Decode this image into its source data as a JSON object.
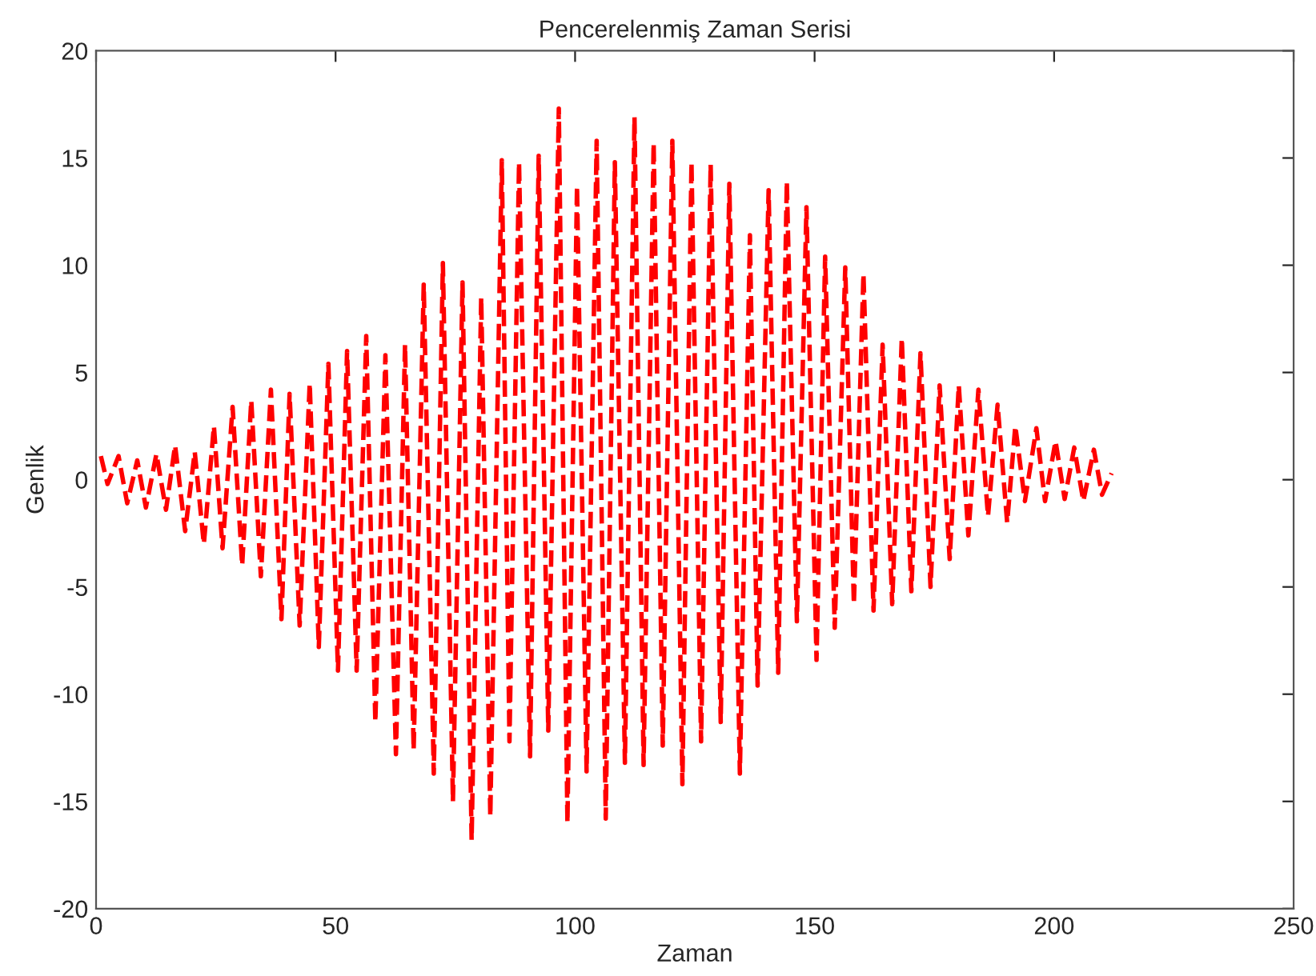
{
  "chart_data": {
    "type": "line",
    "title": "Pencerelenmiş Zaman Serisi",
    "xlabel": "Zaman",
    "ylabel": "Genlik",
    "xlim": [
      0,
      250
    ],
    "xticks": [
      0,
      50,
      100,
      150,
      200,
      250
    ],
    "ylim": [
      -20,
      20
    ],
    "yticks": [
      -20,
      -15,
      -10,
      -5,
      0,
      5,
      10,
      15,
      20
    ],
    "grid": false,
    "marker": "none",
    "line_style": "dashed",
    "series": [
      {
        "color": "#ff0000",
        "x": [
          1,
          2.4,
          4.7,
          6.5,
          8.6,
          10.4,
          12.6,
          14.6,
          16.5,
          18.6,
          20.6,
          22.5,
          24.6,
          26.4,
          28.5,
          30.5,
          32.4,
          34.4,
          36.5,
          38.7,
          40.4,
          42.5,
          44.6,
          46.5,
          48.5,
          50.5,
          52.4,
          54.4,
          56.4,
          58.3,
          60.4,
          62.6,
          64.5,
          66.3,
          68.4,
          70.5,
          72.4,
          74.5,
          76.5,
          78.4,
          80.4,
          82.3,
          84.7,
          86.3,
          88.3,
          90.6,
          92.4,
          94.4,
          96.6,
          98.4,
          100.4,
          102.4,
          104.5,
          106.4,
          108.3,
          110.4,
          112.4,
          114.3,
          116.4,
          118.3,
          120.3,
          122.4,
          124.3,
          126.3,
          128.3,
          130.4,
          132.2,
          134.4,
          136.5,
          138.1,
          140.4,
          142.4,
          144.2,
          146.3,
          148.3,
          150.4,
          152.2,
          154.2,
          156.4,
          158.2,
          160.2,
          162.3,
          164.2,
          166.2,
          168.2,
          170.2,
          172.1,
          174.2,
          176.1,
          178.2,
          180.1,
          182.1,
          184.2,
          186.2,
          188.2,
          190.2,
          191.9,
          193.9,
          196.3,
          198.1,
          200.3,
          202.2,
          204.2,
          206.1,
          208.3,
          210,
          212
        ],
        "values": [
          1.1,
          -0.2,
          1.1,
          -1.1,
          0.9,
          -1.3,
          1.2,
          -1.4,
          1.6,
          -2.4,
          1.3,
          -3,
          2.5,
          -3.2,
          3.4,
          -4,
          3.7,
          -4.5,
          4.2,
          -6.5,
          4,
          -6.8,
          4.5,
          -7.8,
          5.4,
          -8.9,
          6,
          -8.9,
          6.7,
          -11.3,
          5.8,
          -12.8,
          6.3,
          -12.6,
          9.1,
          -13.7,
          10.1,
          -15,
          9.2,
          -16.8,
          8.5,
          -15.7,
          14.9,
          -12.2,
          14.8,
          -12.9,
          15.1,
          -11.7,
          17.3,
          -16,
          13.7,
          -13.6,
          15.8,
          -15.8,
          14.8,
          -13.2,
          16.9,
          -13.3,
          15.7,
          -12.4,
          15.8,
          -14.2,
          14.8,
          -12.2,
          14.7,
          -11.3,
          13.8,
          -13.7,
          11.4,
          -9.6,
          13.5,
          -9,
          13.9,
          -6.6,
          12.7,
          -8.4,
          10.4,
          -6.9,
          9.9,
          -5.8,
          9.6,
          -6.1,
          6.3,
          -5.8,
          6.6,
          -5.2,
          5.9,
          -5,
          4.4,
          -3.7,
          4.4,
          -2.6,
          4.2,
          -1.7,
          3.5,
          -2,
          2.5,
          -1,
          2.4,
          -1,
          1.8,
          -0.9,
          1.5,
          -1,
          1.4,
          -0.7,
          0.3
        ]
      }
    ]
  }
}
